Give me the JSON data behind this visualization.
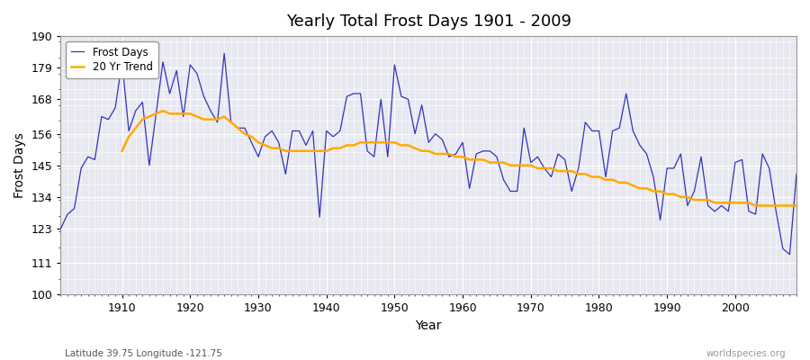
{
  "title": "Yearly Total Frost Days 1901 - 2009",
  "xlabel": "Year",
  "ylabel": "Frost Days",
  "footnote_left": "Latitude 39.75 Longitude -121.75",
  "footnote_right": "worldspecies.org",
  "legend_labels": [
    "Frost Days",
    "20 Yr Trend"
  ],
  "line_color": "#3333bb",
  "trend_color": "#ffaa00",
  "bg_color": "#e8e8f0",
  "ylim": [
    100,
    190
  ],
  "yticks": [
    100,
    111,
    123,
    134,
    145,
    156,
    168,
    179,
    190
  ],
  "xlim": [
    1901,
    2009
  ],
  "years": [
    1901,
    1902,
    1903,
    1904,
    1905,
    1906,
    1907,
    1908,
    1909,
    1910,
    1911,
    1912,
    1913,
    1914,
    1915,
    1916,
    1917,
    1918,
    1919,
    1920,
    1921,
    1922,
    1923,
    1924,
    1925,
    1926,
    1927,
    1928,
    1929,
    1930,
    1931,
    1932,
    1933,
    1934,
    1935,
    1936,
    1937,
    1938,
    1939,
    1940,
    1941,
    1942,
    1943,
    1944,
    1945,
    1946,
    1947,
    1948,
    1949,
    1950,
    1951,
    1952,
    1953,
    1954,
    1955,
    1956,
    1957,
    1958,
    1959,
    1960,
    1961,
    1962,
    1963,
    1964,
    1965,
    1966,
    1967,
    1968,
    1969,
    1970,
    1971,
    1972,
    1973,
    1974,
    1975,
    1976,
    1977,
    1978,
    1979,
    1980,
    1981,
    1982,
    1983,
    1984,
    1985,
    1986,
    1987,
    1988,
    1989,
    1990,
    1991,
    1992,
    1993,
    1994,
    1995,
    1996,
    1997,
    1998,
    1999,
    2000,
    2001,
    2002,
    2003,
    2004,
    2005,
    2006,
    2007,
    2008,
    2009
  ],
  "frost_days": [
    123,
    128,
    130,
    144,
    148,
    147,
    162,
    161,
    165,
    181,
    157,
    164,
    167,
    145,
    163,
    181,
    170,
    178,
    162,
    180,
    177,
    169,
    164,
    160,
    184,
    160,
    158,
    158,
    153,
    148,
    155,
    157,
    153,
    142,
    157,
    157,
    152,
    157,
    127,
    157,
    155,
    157,
    169,
    170,
    170,
    150,
    148,
    168,
    148,
    180,
    169,
    168,
    156,
    166,
    153,
    156,
    154,
    148,
    149,
    153,
    137,
    149,
    150,
    150,
    148,
    140,
    136,
    136,
    158,
    146,
    148,
    144,
    141,
    149,
    147,
    136,
    144,
    160,
    157,
    157,
    141,
    157,
    158,
    170,
    157,
    152,
    149,
    141,
    126,
    144,
    144,
    149,
    131,
    136,
    148,
    131,
    129,
    131,
    129,
    146,
    147,
    129,
    128,
    149,
    144,
    129,
    116,
    114,
    142
  ],
  "trend_years": [
    1910,
    1911,
    1912,
    1913,
    1914,
    1915,
    1916,
    1917,
    1918,
    1919,
    1920,
    1921,
    1922,
    1923,
    1924,
    1925,
    1926,
    1927,
    1928,
    1929,
    1930,
    1931,
    1932,
    1933,
    1934,
    1935,
    1936,
    1937,
    1938,
    1939,
    1940,
    1941,
    1942,
    1943,
    1944,
    1945,
    1946,
    1947,
    1948,
    1949,
    1950,
    1951,
    1952,
    1953,
    1954,
    1955,
    1956,
    1957,
    1958,
    1959,
    1960,
    1961,
    1962,
    1963,
    1964,
    1965,
    1966,
    1967,
    1968,
    1969,
    1970,
    1971,
    1972,
    1973,
    1974,
    1975,
    1976,
    1977,
    1978,
    1979,
    1980,
    1981,
    1982,
    1983,
    1984,
    1985,
    1986,
    1987,
    1988,
    1989,
    1990,
    1991,
    1992,
    1993,
    1994,
    1995,
    1996,
    1997,
    1998,
    1999,
    2000,
    2001,
    2002,
    2003,
    2004,
    2005,
    2006,
    2007,
    2008,
    2009
  ],
  "trend_values": [
    150,
    155,
    158,
    161,
    162,
    163,
    164,
    163,
    163,
    163,
    163,
    162,
    161,
    161,
    161,
    162,
    160,
    158,
    156,
    155,
    153,
    152,
    151,
    151,
    150,
    150,
    150,
    150,
    150,
    150,
    150,
    151,
    151,
    152,
    152,
    153,
    153,
    153,
    153,
    153,
    153,
    152,
    152,
    151,
    150,
    150,
    149,
    149,
    149,
    148,
    148,
    147,
    147,
    147,
    146,
    146,
    146,
    145,
    145,
    145,
    145,
    144,
    144,
    144,
    143,
    143,
    143,
    142,
    142,
    141,
    141,
    140,
    140,
    139,
    139,
    138,
    137,
    137,
    136,
    136,
    135,
    135,
    134,
    134,
    133,
    133,
    133,
    132,
    132,
    132,
    132,
    132,
    132,
    131,
    131,
    131,
    131,
    131,
    131,
    131
  ]
}
